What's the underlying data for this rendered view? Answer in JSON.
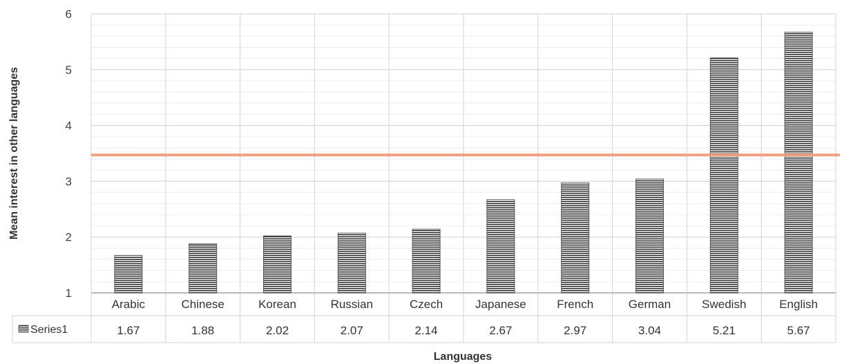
{
  "chart_data": {
    "type": "bar",
    "categories": [
      "Arabic",
      "Chinese",
      "Korean",
      "Russian",
      "Czech",
      "Japanese",
      "French",
      "German",
      "Swedish",
      "English"
    ],
    "series": [
      {
        "name": "Series1",
        "values": [
          1.67,
          1.88,
          2.02,
          2.07,
          2.14,
          2.67,
          2.97,
          3.04,
          5.21,
          5.67
        ]
      }
    ],
    "value_labels": [
      "1.67",
      "1.88",
      "2.02",
      "2.07",
      "2.14",
      "2.67",
      "2.97",
      "3.04",
      "5.21",
      "5.67"
    ],
    "y_ticks": [
      "1",
      "2",
      "3",
      "4",
      "5",
      "6"
    ],
    "ylim": [
      1,
      6
    ],
    "reference_line": 3.47,
    "title": "",
    "xlabel": "Languages",
    "ylabel": "Mean interest in other languages",
    "grid": true,
    "data_table": true,
    "colors": {
      "bar_fill": "#ffffff",
      "bar_stripe": "#333333",
      "reference_line": "#f0a07c",
      "grid": "#d9d9d9",
      "minor_grid": "#eeeeee"
    }
  }
}
